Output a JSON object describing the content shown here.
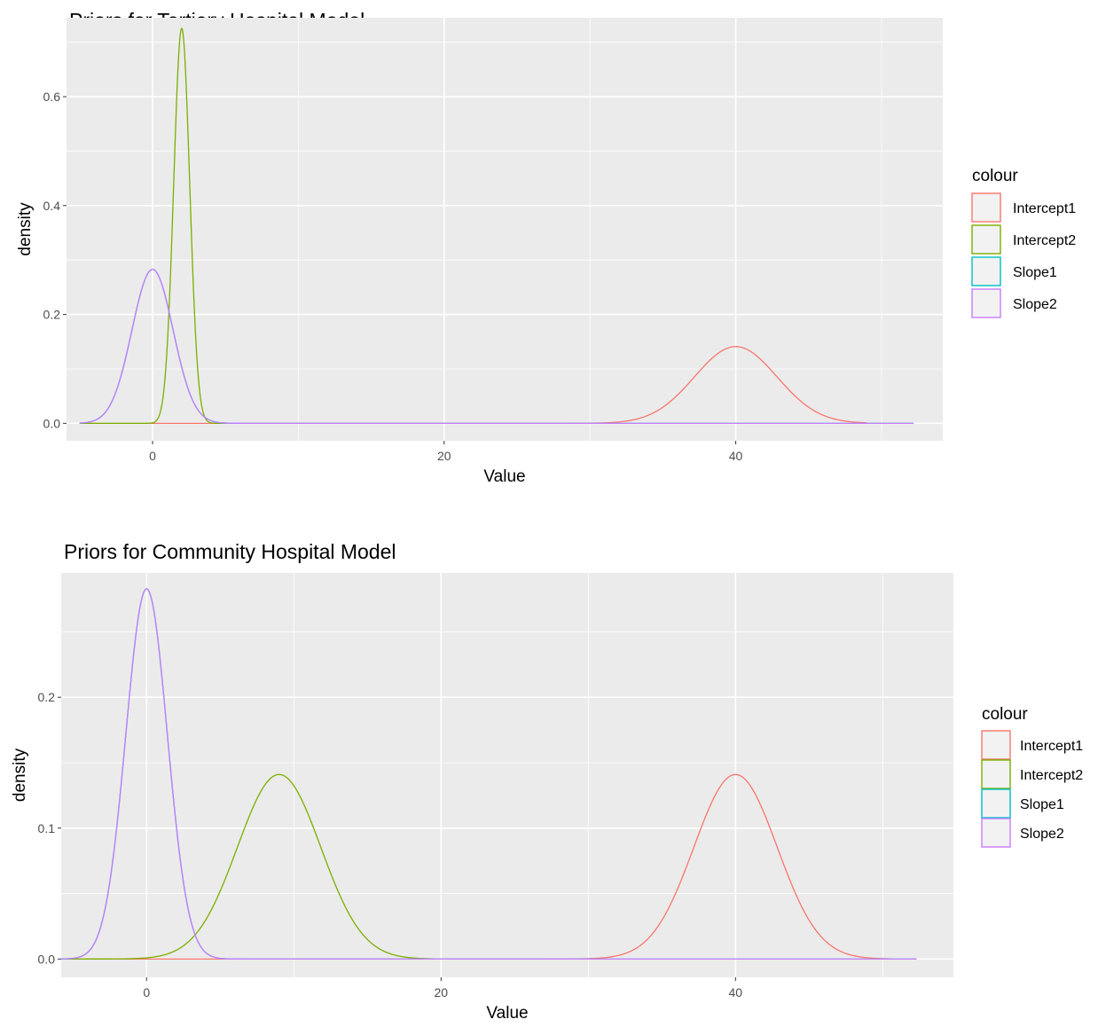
{
  "chart_data": [
    {
      "type": "line",
      "title": "Priors for Tertiary Hospital Model",
      "xlabel": "Value",
      "ylabel": "density",
      "xlim": [
        -5.9,
        54.2
      ],
      "ylim": [
        -0.032,
        0.745
      ],
      "x_ticks": [
        0,
        20,
        40
      ],
      "y_ticks": [
        0.0,
        0.2,
        0.4,
        0.6
      ],
      "y_tick_labels": [
        "0.0",
        "0.2",
        "0.4",
        "0.6"
      ],
      "legend": {
        "title": "colour",
        "position": "right"
      },
      "grid": true,
      "series": [
        {
          "name": "Intercept1",
          "color": "#F8766D",
          "mean": 40,
          "sd": 2.83,
          "range": [
            -5,
            49
          ]
        },
        {
          "name": "Intercept2",
          "color": "#7CAE00",
          "mean": 2,
          "sd": 0.55,
          "range": [
            -5,
            5.2
          ]
        },
        {
          "name": "Slope1",
          "color": "#00BFC4",
          "mean": 0,
          "sd": 1.41,
          "range": [
            -5,
            52.2
          ]
        },
        {
          "name": "Slope2",
          "color": "#C77CFF",
          "mean": 0,
          "sd": 1.41,
          "range": [
            -5,
            52.2
          ]
        }
      ]
    },
    {
      "type": "line",
      "title": "Priors for Community Hospital Model",
      "xlabel": "Value",
      "ylabel": "density",
      "xlim": [
        -5.8,
        54.8
      ],
      "ylim": [
        -0.014,
        0.295
      ],
      "x_ticks": [
        0,
        20,
        40
      ],
      "y_ticks": [
        0.0,
        0.1,
        0.2
      ],
      "y_tick_labels": [
        "0.0",
        "0.1",
        "0.2"
      ],
      "legend": {
        "title": "colour",
        "position": "right"
      },
      "grid": true,
      "series": [
        {
          "name": "Intercept1",
          "color": "#F8766D",
          "mean": 40,
          "sd": 2.83,
          "range": [
            -5.8,
            50.5
          ]
        },
        {
          "name": "Intercept2",
          "color": "#7CAE00",
          "mean": 9,
          "sd": 2.83,
          "range": [
            -5.8,
            19.5
          ]
        },
        {
          "name": "Slope1",
          "color": "#00BFC4",
          "mean": 0,
          "sd": 1.41,
          "range": [
            -5.8,
            52.3
          ]
        },
        {
          "name": "Slope2",
          "color": "#C77CFF",
          "mean": 0,
          "sd": 1.41,
          "range": [
            -5.8,
            52.3
          ]
        }
      ]
    }
  ]
}
